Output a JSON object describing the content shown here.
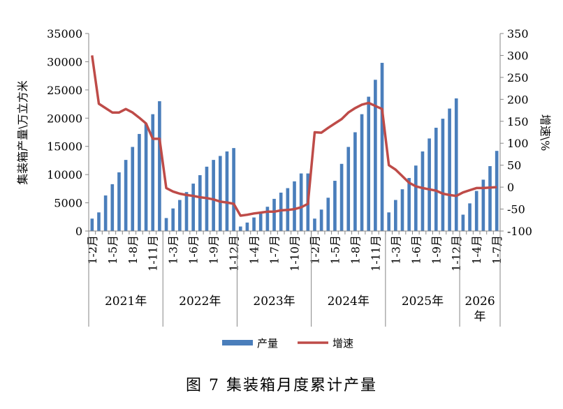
{
  "caption": "图 7 集装箱月度累计产量",
  "chart_data": {
    "type": "bar",
    "ylabel": "集装箱产量\\万立方米",
    "y2label": "增速\\%",
    "ylim": [
      0,
      35000
    ],
    "y2lim": [
      -100,
      350
    ],
    "yticks": [
      "0",
      "5000",
      "10000",
      "15000",
      "20000",
      "25000",
      "30000",
      "35000"
    ],
    "y2ticks": [
      "-100",
      "-50",
      "0",
      "50",
      "100",
      "150",
      "200",
      "250",
      "300",
      "350"
    ],
    "grid": false,
    "legend_position": "bottom",
    "colors": {
      "bar": "#4a7ebb",
      "line": "#be4b48"
    },
    "categories": [
      "1-2月",
      "1-3月",
      "1-4月",
      "1-5月",
      "1-6月",
      "1-7月",
      "1-8月",
      "1-9月",
      "1-10月",
      "1-11月",
      "1-12月",
      "1-2月",
      "1-3月",
      "1-4月",
      "1-5月",
      "1-6月",
      "1-7月",
      "1-8月",
      "1-9月",
      "1-10月",
      "1-11月",
      "1-12月",
      "1-2月",
      "1-3月",
      "1-4月",
      "1-5月",
      "1-6月",
      "1-7月",
      "1-8月",
      "1-9月",
      "1-10月",
      "1-11月",
      "1-12月",
      "1-2月",
      "1-3月",
      "1-4月",
      "1-5月",
      "1-6月",
      "1-7月",
      "1-8月",
      "1-9月",
      "1-10月",
      "1-11月",
      "1-12月",
      "1-2月",
      "1-3月",
      "1-4月",
      "1-5月",
      "1-6月",
      "1-7月",
      "1-8月",
      "1-9月",
      "1-10月",
      "1-11月",
      "1-12月",
      "1-2月",
      "1-3月",
      "1-4月",
      "1-5月",
      "1-6月",
      "1-7月"
    ],
    "shown_tick_labels": [
      "1-2月",
      "1-5月",
      "1-8月",
      "1-11月",
      "1-3月",
      "1-6月",
      "1-9月",
      "1-12月",
      "1-4月",
      "1-7月",
      "1-10月",
      "1-2月",
      "1-5月",
      "1-8月",
      "1-11月",
      "1-3月",
      "1-6月",
      "1-9月",
      "1-12月",
      "1-4月",
      "1-7月"
    ],
    "groups": [
      {
        "label": "2021年",
        "count": 11
      },
      {
        "label": "2022年",
        "count": 11
      },
      {
        "label": "2023年",
        "count": 11
      },
      {
        "label": "2024年",
        "count": 11
      },
      {
        "label": "2025年",
        "count": 11
      },
      {
        "label": "2026年",
        "count": 6
      }
    ],
    "series": [
      {
        "name": "产量",
        "type": "bar",
        "axis": "left",
        "values": [
          2200,
          3300,
          6300,
          8300,
          10400,
          12600,
          14900,
          17200,
          19000,
          20700,
          23000,
          2300,
          4000,
          5500,
          6900,
          8400,
          9900,
          11400,
          12600,
          13300,
          14100,
          14700,
          800,
          1500,
          2400,
          3300,
          4300,
          5700,
          6800,
          7600,
          8800,
          10200,
          10200,
          2200,
          3800,
          5900,
          8900,
          11900,
          14900,
          17500,
          20700,
          23800,
          26800,
          29800,
          3300,
          5500,
          7400,
          9400,
          11600,
          14100,
          16400,
          18300,
          19900,
          21700,
          23500,
          2900,
          4900,
          7100,
          9100,
          11500,
          14200
        ]
      },
      {
        "name": "增速",
        "type": "line",
        "axis": "right",
        "values": [
          300,
          190,
          180,
          170,
          170,
          178,
          170,
          158,
          145,
          110,
          110,
          -2,
          -10,
          -15,
          -18,
          -20,
          -23,
          -25,
          -28,
          -33,
          -35,
          -38,
          -65,
          -63,
          -60,
          -58,
          -56,
          -56,
          -53,
          -52,
          -50,
          -46,
          -38,
          125,
          124,
          135,
          145,
          155,
          170,
          180,
          188,
          192,
          185,
          178,
          50,
          40,
          25,
          10,
          2,
          -2,
          -5,
          -8,
          -15,
          -18,
          -20,
          -12,
          -7,
          -2,
          -2,
          -1,
          0
        ]
      }
    ]
  }
}
